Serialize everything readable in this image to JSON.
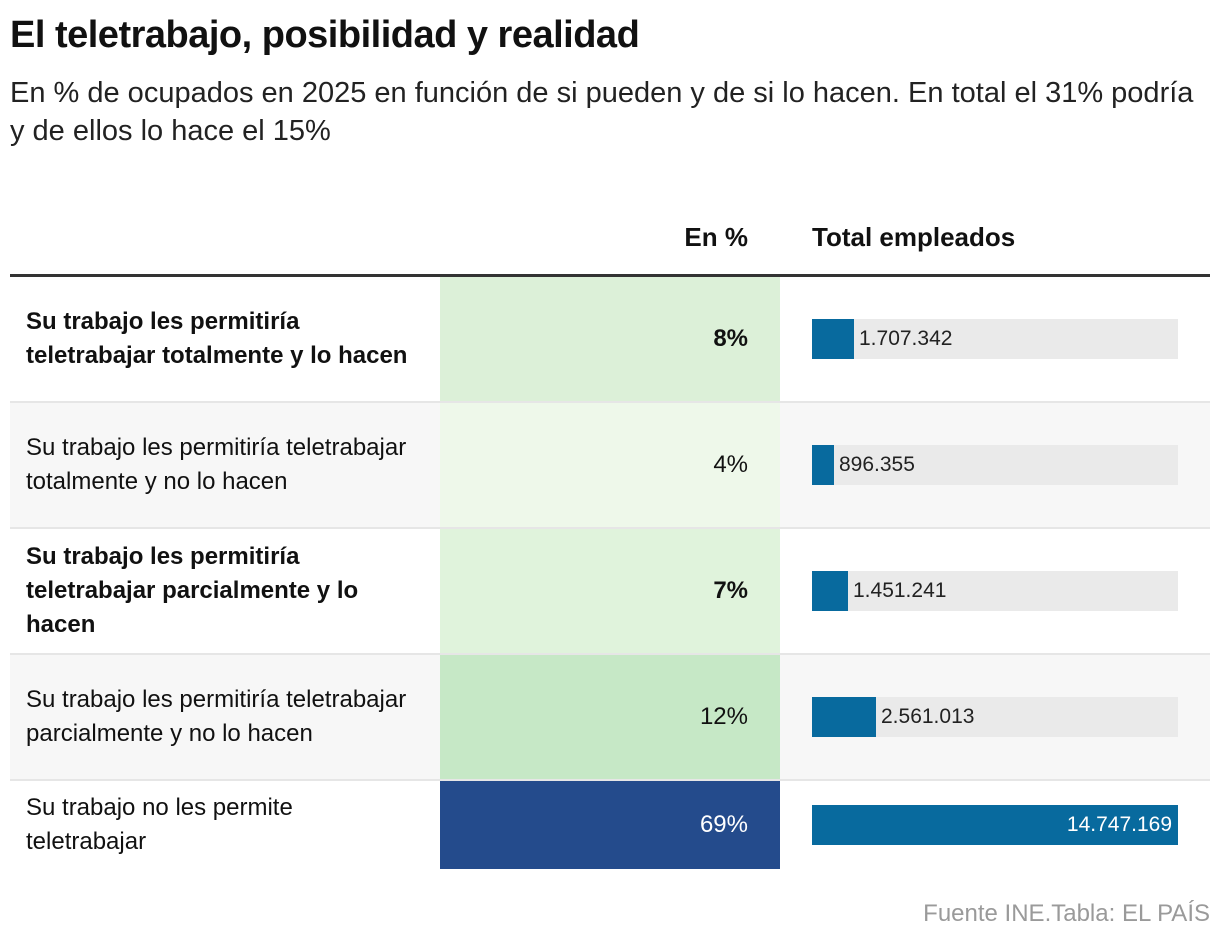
{
  "title": "El teletrabajo, posibilidad y realidad",
  "subtitle": "En % de ocupados en 2025 en función de si pueden y de si lo hacen. En total el 31% podría y de ellos lo hace el 15%",
  "columns": {
    "pct": "En %",
    "total": "Total empleados"
  },
  "source": "Fuente INE.Tabla: EL PAÍS",
  "chart_data": {
    "type": "table",
    "columns": [
      "",
      "En %",
      "Total empleados"
    ],
    "rows": [
      {
        "label": "Su trabajo les permitiría teletrabajar totalmente y lo hacen",
        "pct": 8,
        "pct_label": "8%",
        "total": 1707342,
        "total_label": "1.707.342",
        "bold": true,
        "cell_color": "#dcf0d8"
      },
      {
        "label": "Su trabajo les permitiría teletrabajar totalmente y no lo hacen",
        "pct": 4,
        "pct_label": "4%",
        "total": 896355,
        "total_label": "896.355",
        "bold": false,
        "cell_color": "#eef8ea"
      },
      {
        "label": "Su trabajo les permitiría teletrabajar parcialmente y lo hacen",
        "pct": 7,
        "pct_label": "7%",
        "total": 1451241,
        "total_label": "1.451.241",
        "bold": true,
        "cell_color": "#e0f3dc"
      },
      {
        "label": "Su trabajo les permitiría teletrabajar parcialmente y no lo hacen",
        "pct": 12,
        "pct_label": "12%",
        "total": 2561013,
        "total_label": "2.561.013",
        "bold": false,
        "cell_color": "#c6e8c6"
      },
      {
        "label": "Su trabajo no les permite teletrabajar",
        "pct": 69,
        "pct_label": "69%",
        "total": 14747169,
        "total_label": "14.747.169",
        "bold": false,
        "cell_color": "#244b8c"
      }
    ],
    "bar_color": "#086a9e",
    "bar_track_color": "#eaeaea"
  }
}
